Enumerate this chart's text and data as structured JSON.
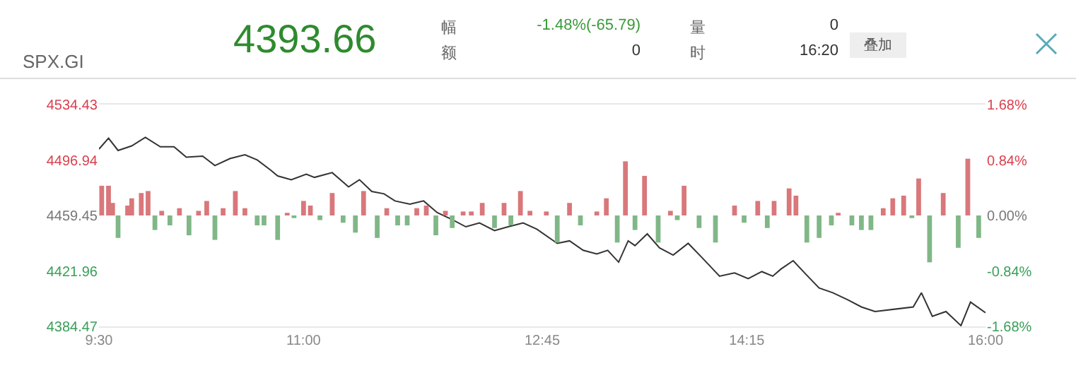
{
  "chart_data": {
    "type": "line",
    "subtitle": "SPX.GI",
    "annotations": [
      "4393.66",
      "幅",
      "-1.48%(-65.79)",
      "额",
      "0",
      "量",
      "0",
      "时",
      "16:20",
      "叠加"
    ],
    "xlim": [
      9.5,
      16
    ],
    "xticks": [
      {
        "value": 9.5,
        "label": "9:30"
      },
      {
        "value": 11,
        "label": "11:00"
      },
      {
        "value": 12.75,
        "label": "12:45"
      },
      {
        "value": 14.25,
        "label": "14:15"
      },
      {
        "value": 16,
        "label": "16:00"
      }
    ],
    "ylim": [
      4384.47,
      4534.43
    ],
    "yticks": [
      4384.47,
      4421.96,
      4459.45,
      4496.94,
      4534.43
    ],
    "y2lim": [
      -1.68,
      1.68
    ],
    "y2ticks": [
      {
        "value": -1.68,
        "label": "-1.68%"
      },
      {
        "value": -0.84,
        "label": "-0.84%"
      },
      {
        "value": 0,
        "label": "0.00%"
      },
      {
        "value": 0.84,
        "label": "0.84%"
      },
      {
        "value": 1.68,
        "label": "1.68%"
      }
    ],
    "grid": false,
    "marker": "none",
    "line_style": "solid",
    "series": [
      {
        "type": "bar",
        "axis": "y2",
        "color": "#d9777b",
        "x": [
          9.52,
          9.57,
          9.6,
          9.71,
          9.74,
          9.81,
          9.86,
          9.96,
          10.09,
          10.23,
          10.29,
          10.41,
          10.5,
          10.57,
          10.88,
          11.0,
          11.05,
          11.21,
          11.44,
          11.61,
          11.83,
          11.9,
          12.04,
          12.17,
          12.23,
          12.31,
          12.47,
          12.59,
          12.66,
          12.78,
          12.95,
          13.15,
          13.22,
          13.36,
          13.5,
          13.69,
          13.79,
          14.16,
          14.33,
          14.45,
          14.56,
          14.61,
          14.92,
          15.25,
          15.32,
          15.4,
          15.51,
          15.69,
          15.87
        ],
        "values": [
          0.45,
          0.45,
          0.19,
          0.15,
          0.26,
          0.34,
          0.37,
          0.07,
          0.11,
          0.07,
          0.22,
          0.11,
          0.37,
          0.11,
          0.04,
          0.22,
          0.15,
          0.34,
          0.37,
          0.11,
          0.11,
          0.15,
          0.07,
          0.06,
          0.06,
          0.19,
          0.19,
          0.37,
          0.07,
          0.06,
          0.19,
          0.06,
          0.26,
          0.82,
          0.6,
          0.07,
          0.45,
          0.15,
          0.22,
          0.22,
          0.41,
          0.3,
          0.04,
          0.11,
          0.26,
          0.3,
          0.56,
          0.34,
          0.86
        ]
      },
      {
        "type": "bar",
        "axis": "y2",
        "color": "#80b787",
        "x": [
          9.64,
          9.91,
          10.02,
          10.16,
          10.35,
          10.66,
          10.71,
          10.81,
          10.93,
          11.12,
          11.29,
          11.38,
          11.54,
          11.69,
          11.76,
          11.97,
          12.09,
          12.4,
          12.52,
          12.86,
          13.03,
          13.3,
          13.43,
          13.6,
          13.74,
          13.9,
          14.02,
          14.23,
          14.4,
          14.69,
          14.78,
          14.87,
          15.02,
          15.09,
          15.16,
          15.46,
          15.59,
          15.8,
          15.95
        ],
        "values": [
          -0.34,
          -0.22,
          -0.15,
          -0.3,
          -0.37,
          -0.15,
          -0.15,
          -0.37,
          -0.04,
          -0.07,
          -0.11,
          -0.26,
          -0.34,
          -0.15,
          -0.15,
          -0.3,
          -0.19,
          -0.19,
          -0.15,
          -0.41,
          -0.15,
          -0.41,
          -0.22,
          -0.41,
          -0.07,
          -0.19,
          -0.41,
          -0.11,
          -0.19,
          -0.41,
          -0.34,
          -0.15,
          -0.15,
          -0.22,
          -0.22,
          -0.04,
          -0.71,
          -0.49,
          -0.34
        ]
      },
      {
        "axis": "y",
        "color": "#333333",
        "x": [
          9.5,
          9.57,
          9.64,
          9.74,
          9.84,
          9.95,
          10.05,
          10.14,
          10.26,
          10.35,
          10.46,
          10.57,
          10.66,
          10.76,
          10.81,
          10.91,
          11.02,
          11.08,
          11.21,
          11.33,
          11.41,
          11.5,
          11.59,
          11.67,
          11.78,
          11.88,
          11.98,
          12.09,
          12.19,
          12.29,
          12.4,
          12.5,
          12.61,
          12.71,
          12.86,
          12.95,
          13.05,
          13.15,
          13.23,
          13.31,
          13.38,
          13.43,
          13.52,
          13.61,
          13.71,
          13.82,
          13.92,
          14.05,
          14.16,
          14.26,
          14.36,
          14.44,
          14.5,
          14.59,
          14.68,
          14.78,
          14.88,
          14.99,
          15.09,
          15.19,
          15.47,
          15.53,
          15.61,
          15.71,
          15.82,
          15.89,
          16.0
        ],
        "values": [
          4504.3,
          4511.7,
          4503.4,
          4506.5,
          4512.3,
          4505.9,
          4505.9,
          4498.9,
          4499.6,
          4493.2,
          4497.9,
          4500.5,
          4497,
          4490,
          4486.2,
          4483.6,
          4487.4,
          4485.2,
          4488.4,
          4478.8,
          4483.6,
          4475.7,
          4474.1,
          4469.3,
          4467.1,
          4469.3,
          4461.4,
          4456.6,
          4451.8,
          4454.4,
          4449.2,
          4451.8,
          4454.4,
          4450.2,
          4440.6,
          4442.3,
          4435.9,
          4433.4,
          4435.9,
          4427.9,
          4442.3,
          4439.1,
          4447,
          4437.5,
          4432.7,
          4440.6,
          4431.1,
          4418.4,
          4420.6,
          4416.8,
          4421.5,
          4418.4,
          4423.2,
          4428.9,
          4420,
          4410.4,
          4407.2,
          4402.4,
          4397.6,
          4394.5,
          4397.6,
          4407.2,
          4391.3,
          4394.5,
          4385,
          4400.9,
          4393.66
        ]
      }
    ]
  }
}
